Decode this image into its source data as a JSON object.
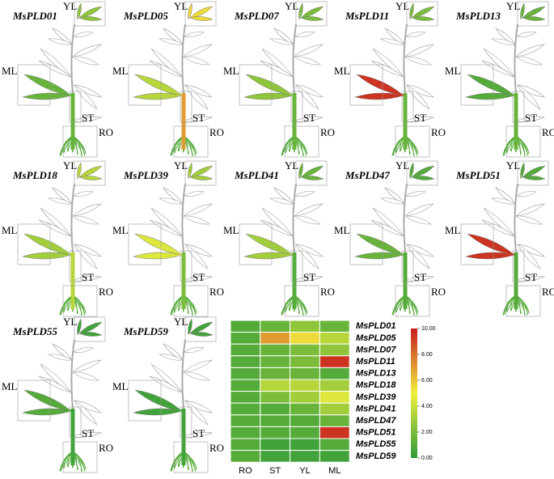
{
  "chart_data": {
    "type": "heatmap",
    "rows": [
      "MsPLD01",
      "MsPLD05",
      "MsPLD07",
      "MsPLD11",
      "MsPLD13",
      "MsPLD18",
      "MsPLD39",
      "MsPLD41",
      "MsPLD47",
      "MsPLD51",
      "MsPLD55",
      "MsPLD59"
    ],
    "columns": [
      "RO",
      "ST",
      "YL",
      "ML"
    ],
    "values": [
      [
        1.0,
        1.5,
        2.5,
        1.5
      ],
      [
        1.0,
        7.0,
        5.5,
        3.5
      ],
      [
        1.0,
        1.5,
        2.0,
        2.5
      ],
      [
        1.0,
        1.5,
        2.0,
        9.5
      ],
      [
        1.0,
        1.5,
        1.5,
        1.0
      ],
      [
        1.0,
        3.5,
        3.5,
        3.0
      ],
      [
        1.0,
        2.0,
        3.0,
        4.5
      ],
      [
        1.0,
        1.0,
        1.5,
        3.0
      ],
      [
        1.0,
        1.0,
        1.0,
        1.5
      ],
      [
        1.0,
        1.0,
        1.0,
        9.5
      ],
      [
        1.0,
        0.5,
        0.5,
        1.0
      ],
      [
        1.0,
        0.5,
        0.5,
        0.5
      ]
    ],
    "colorscale": [
      "#2e9a3a",
      "#f0f03c",
      "#c81e1e"
    ],
    "clim": [
      0,
      10
    ],
    "cticks": [
      {
        "value": 10,
        "label": "10.00"
      },
      {
        "value": 8,
        "label": "8.00"
      },
      {
        "value": 6,
        "label": "6.00"
      },
      {
        "value": 4,
        "label": "4.00"
      },
      {
        "value": 2,
        "label": "2.00"
      },
      {
        "value": 0,
        "label": "0.00"
      }
    ]
  }
}
